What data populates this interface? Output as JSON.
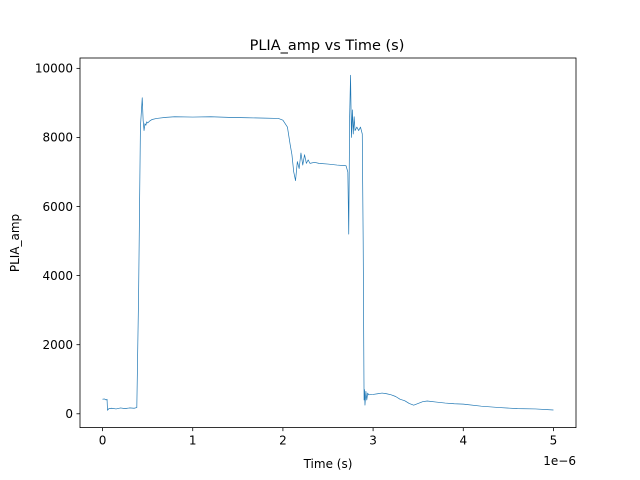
{
  "chart_data": {
    "type": "line",
    "title": "PLIA_amp vs Time (s)",
    "xlabel": "Time (s)",
    "ylabel": "PLIA_amp",
    "x_offset_label": "1e−6",
    "x_scale": 1e-06,
    "xlim": [
      -0.25,
      5.25
    ],
    "ylim": [
      -400,
      10300
    ],
    "x_ticks": [
      0,
      1,
      2,
      3,
      4,
      5
    ],
    "x_tick_labels": [
      "0",
      "1",
      "2",
      "3",
      "4",
      "5"
    ],
    "y_ticks": [
      0,
      2000,
      4000,
      6000,
      8000,
      10000
    ],
    "y_tick_labels": [
      "0",
      "2000",
      "4000",
      "6000",
      "8000",
      "10000"
    ],
    "grid": false,
    "legend": "none",
    "series": [
      {
        "color": "#1f77b4",
        "x": [
          0,
          0.02,
          0.04,
          0.05,
          0.055,
          0.07,
          0.1,
          0.15,
          0.2,
          0.25,
          0.3,
          0.35,
          0.38,
          0.4,
          0.42,
          0.44,
          0.45,
          0.46,
          0.47,
          0.48,
          0.49,
          0.5,
          0.52,
          0.55,
          0.6,
          0.7,
          0.8,
          1.0,
          1.2,
          1.4,
          1.6,
          1.8,
          1.95,
          2.0,
          2.05,
          2.08,
          2.1,
          2.12,
          2.14,
          2.16,
          2.18,
          2.2,
          2.22,
          2.24,
          2.26,
          2.28,
          2.3,
          2.35,
          2.4,
          2.5,
          2.6,
          2.7,
          2.72,
          2.73,
          2.74,
          2.75,
          2.76,
          2.77,
          2.78,
          2.79,
          2.8,
          2.82,
          2.84,
          2.86,
          2.88,
          2.89,
          2.9,
          2.905,
          2.91,
          2.92,
          2.93,
          2.94,
          2.95,
          3.0,
          3.05,
          3.1,
          3.15,
          3.2,
          3.25,
          3.3,
          3.35,
          3.4,
          3.45,
          3.5,
          3.55,
          3.6,
          3.7,
          3.8,
          3.9,
          4.0,
          4.2,
          4.4,
          4.6,
          4.8,
          5.0
        ],
        "y": [
          420,
          430,
          400,
          420,
          100,
          150,
          160,
          140,
          170,
          150,
          170,
          160,
          180,
          3500,
          8300,
          9150,
          8500,
          8200,
          8400,
          8350,
          8450,
          8420,
          8470,
          8520,
          8550,
          8580,
          8600,
          8590,
          8600,
          8580,
          8570,
          8560,
          8550,
          8500,
          8300,
          7800,
          7500,
          7000,
          6750,
          7300,
          7100,
          7550,
          7200,
          7500,
          7250,
          7350,
          7250,
          7280,
          7250,
          7230,
          7200,
          7180,
          7000,
          5200,
          8600,
          9800,
          8000,
          8800,
          8100,
          8600,
          8200,
          8300,
          8200,
          8300,
          8100,
          5000,
          400,
          700,
          250,
          650,
          400,
          600,
          550,
          560,
          580,
          600,
          580,
          550,
          500,
          420,
          380,
          300,
          250,
          300,
          350,
          370,
          340,
          310,
          290,
          280,
          220,
          180,
          150,
          140,
          110
        ]
      }
    ]
  }
}
